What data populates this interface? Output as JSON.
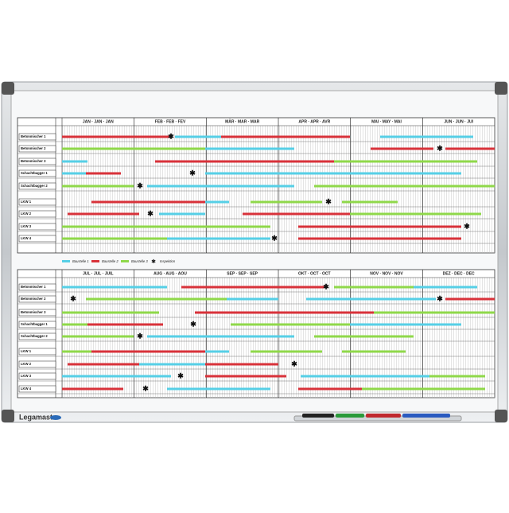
{
  "planner": {
    "top": {
      "months": [
        "JAN · JAN · JAN",
        "FEB · FEB · FEV",
        "MÄR · MAR · MAR",
        "APR · APR · AVR",
        "MAI · MAY · MAI",
        "JUN · JUN · JUI"
      ],
      "rows": [
        "Betonmischer 1",
        "Betonmischer 2",
        "Betonmischer 3",
        "Schachtbagger 1",
        "Schachtbagger 2",
        "LKW 1",
        "LKW 2",
        "LKW 3",
        "LKW 4"
      ]
    },
    "bottom": {
      "months": [
        "JUL · JUL · JUIL",
        "AUG · AUG · AOU",
        "SEP · SEP · SEP",
        "OKT · OCT · OCT",
        "NOV · NOV · NOV",
        "DEZ · DEC · DEC"
      ],
      "rows": [
        "Betonmischer 1",
        "Betonmischer 2",
        "Betonmischer 3",
        "Schachtbagger 1",
        "Schachtbagger 2",
        "LKW 1",
        "LKW 2",
        "LKW 3",
        "LKW 4"
      ]
    },
    "legend": [
      "Baustelle 1",
      "Baustelle 2",
      "Baustelle 3",
      "Inspektion"
    ]
  },
  "brand": "Legamaster"
}
